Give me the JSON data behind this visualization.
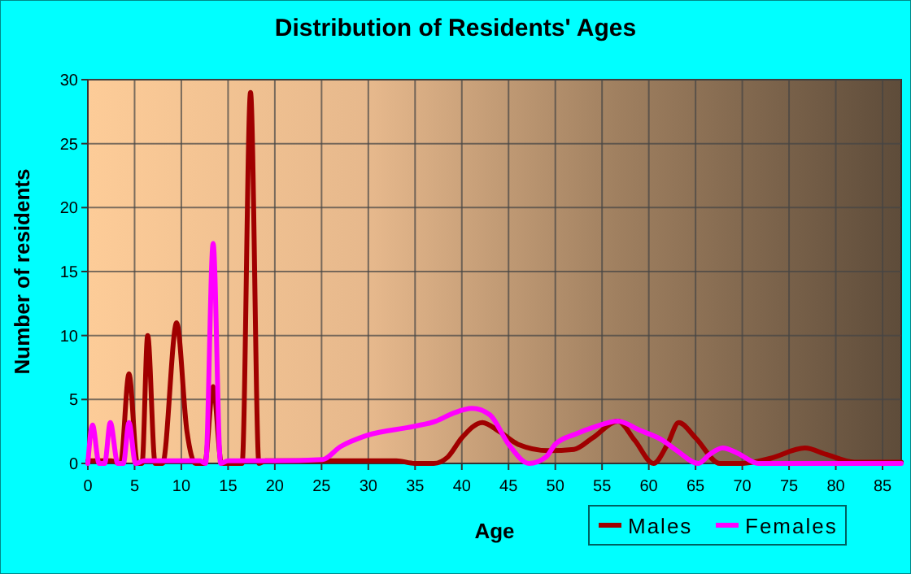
{
  "chart_data": {
    "type": "line",
    "title": "Distribution of Residents' Ages",
    "xlabel": "Age",
    "ylabel": "Number of residents",
    "xlim": [
      0,
      87
    ],
    "xticks": [
      0,
      5,
      10,
      15,
      20,
      25,
      30,
      35,
      40,
      45,
      50,
      55,
      60,
      65,
      70,
      75,
      80,
      85
    ],
    "ylim": [
      0,
      30
    ],
    "yticks": [
      0,
      5,
      10,
      15,
      20,
      25,
      30
    ],
    "grid": true,
    "legend": "bottom right",
    "marker": "none",
    "line_style": "solid",
    "series": [
      {
        "name": "Males",
        "color": "#a00000",
        "x": [
          0,
          2.5,
          3.5,
          4.4,
          5.3,
          5.8,
          6.4,
          7.2,
          8,
          9.5,
          10.6,
          11.5,
          12.5,
          13.4,
          14.3,
          15,
          16.5,
          17.4,
          18.3,
          19,
          20,
          25,
          30,
          33,
          35,
          37,
          38.5,
          40,
          42.2,
          44,
          46,
          49.3,
          52,
          54,
          56.7,
          58.5,
          60.5,
          62,
          63.2,
          65,
          67.6,
          70,
          73,
          76.7,
          79,
          82,
          87
        ],
        "values": [
          0.2,
          0.2,
          0,
          7,
          0,
          0,
          10,
          0,
          0,
          11,
          2.5,
          0,
          0,
          6,
          0,
          0,
          0,
          29,
          0,
          0.2,
          0.2,
          0.2,
          0.2,
          0.2,
          0,
          0,
          0.5,
          2,
          3.2,
          2.5,
          1.5,
          1,
          1.1,
          2,
          3.3,
          1.8,
          0,
          1.5,
          3.2,
          2,
          0,
          0,
          0.4,
          1.2,
          0.7,
          0.1,
          0.1
        ]
      },
      {
        "name": "Females",
        "color": "#ff00ff",
        "x": [
          0,
          0.5,
          1.2,
          1.8,
          2.4,
          3.2,
          3.8,
          4.4,
          5.1,
          6,
          10,
          12,
          12.6,
          13.4,
          14.2,
          15,
          20,
          25.1,
          27,
          29.9,
          34.9,
          37.2,
          39,
          41.1,
          43,
          45,
          47.2,
          49,
          50,
          52.2,
          54,
          56.7,
          59,
          61.5,
          63,
          65.3,
          66.5,
          67.9,
          69.5,
          71.7,
          75,
          80,
          87
        ],
        "values": [
          0,
          3,
          0,
          0,
          3.2,
          0,
          0,
          3.2,
          0,
          0.2,
          0.2,
          0.2,
          0,
          17.2,
          0,
          0.2,
          0.2,
          0.3,
          1.3,
          2.2,
          2.9,
          3.3,
          3.9,
          4.3,
          3.8,
          1.5,
          0,
          0.5,
          1.5,
          2.3,
          2.8,
          3.3,
          2.6,
          1.8,
          1,
          0,
          0.7,
          1.2,
          0.8,
          0,
          0,
          0,
          0
        ]
      }
    ]
  }
}
